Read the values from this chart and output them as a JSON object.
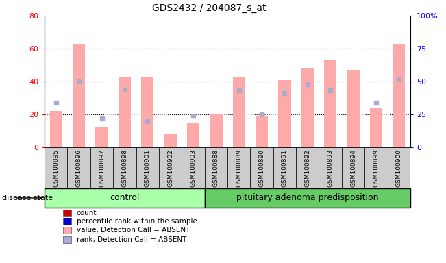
{
  "title": "GDS2432 / 204087_s_at",
  "samples": [
    "GSM100895",
    "GSM100896",
    "GSM100897",
    "GSM100898",
    "GSM100901",
    "GSM100902",
    "GSM100903",
    "GSM100888",
    "GSM100889",
    "GSM100890",
    "GSM100891",
    "GSM100892",
    "GSM100893",
    "GSM100894",
    "GSM100899",
    "GSM100900"
  ],
  "bar_values": [
    22,
    63,
    12,
    43,
    43,
    8,
    15,
    20,
    43,
    19,
    41,
    48,
    53,
    47,
    24,
    63
  ],
  "dot_values": [
    34,
    50,
    22,
    44,
    20,
    null,
    24,
    null,
    43,
    25,
    41,
    48,
    43,
    null,
    34,
    52
  ],
  "ylim_left": [
    0,
    80
  ],
  "ylim_right": [
    0,
    100
  ],
  "left_yticks": [
    0,
    20,
    40,
    60,
    80
  ],
  "right_yticks": [
    0,
    25,
    50,
    75,
    100
  ],
  "bar_color": "#ffaaaa",
  "dot_color": "#aaaacc",
  "control_color": "#aaffaa",
  "disease_color": "#66cc66",
  "bg_color": "#cccccc",
  "legend_items": [
    {
      "label": "count",
      "color": "#cc0000"
    },
    {
      "label": "percentile rank within the sample",
      "color": "#0000cc"
    },
    {
      "label": "value, Detection Call = ABSENT",
      "color": "#ffaaaa"
    },
    {
      "label": "rank, Detection Call = ABSENT",
      "color": "#aaaadd"
    }
  ],
  "disease_state_label": "disease state",
  "n_control": 7,
  "n_disease": 9
}
